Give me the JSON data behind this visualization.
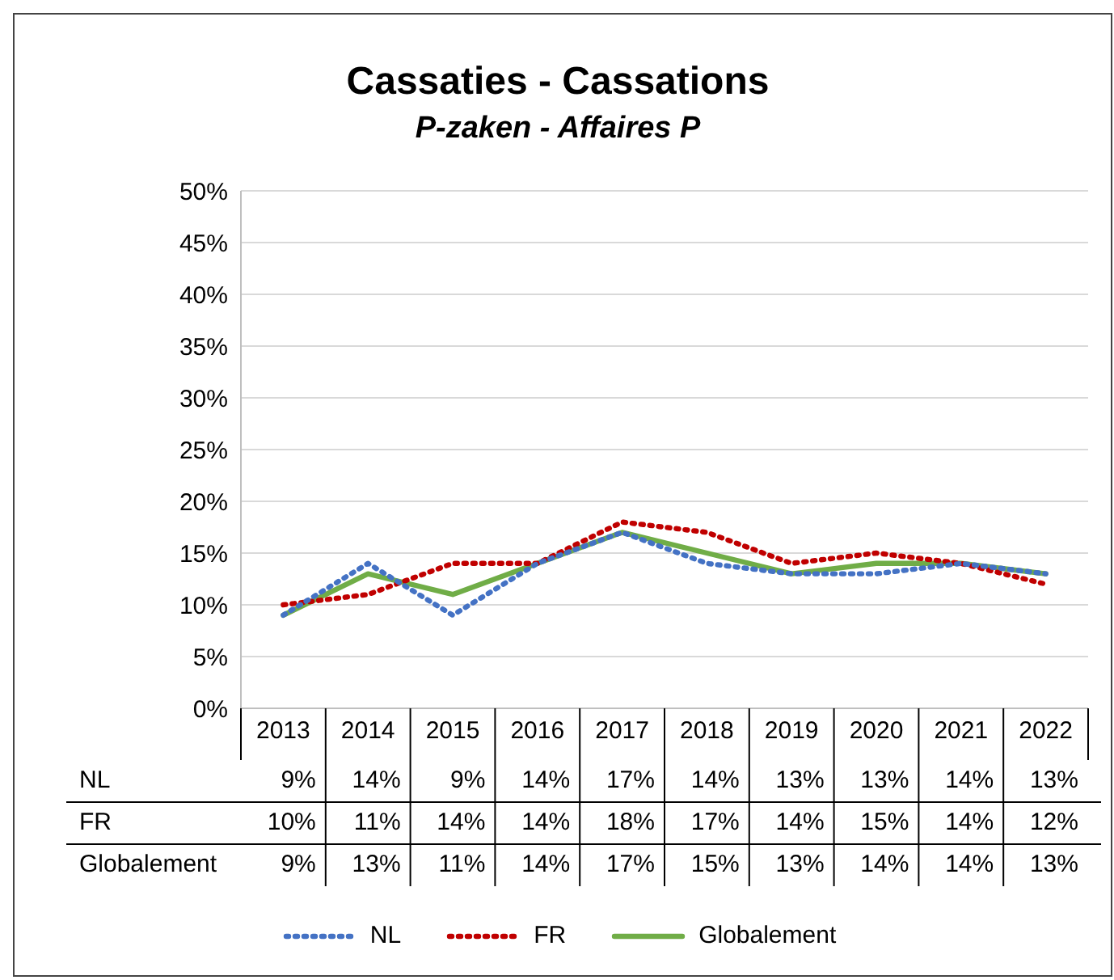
{
  "chart_data": {
    "type": "line",
    "title": "Cassaties - Cassations",
    "subtitle": "P-zaken - Affaires P",
    "categories": [
      "2013",
      "2014",
      "2015",
      "2016",
      "2017",
      "2018",
      "2019",
      "2020",
      "2021",
      "2022"
    ],
    "series": [
      {
        "name": "NL",
        "color": "#4472c4",
        "line_style": "dotted",
        "values": [
          9,
          14,
          9,
          14,
          17,
          14,
          13,
          13,
          14,
          13
        ],
        "value_labels": [
          "9%",
          "14%",
          "9%",
          "14%",
          "17%",
          "14%",
          "13%",
          "13%",
          "14%",
          "13%"
        ]
      },
      {
        "name": "FR",
        "color": "#c00000",
        "line_style": "dotted",
        "values": [
          10,
          11,
          14,
          14,
          18,
          17,
          14,
          15,
          14,
          12
        ],
        "value_labels": [
          "10%",
          "11%",
          "14%",
          "14%",
          "18%",
          "17%",
          "14%",
          "15%",
          "14%",
          "12%"
        ]
      },
      {
        "name": "Globalement",
        "color": "#70ad47",
        "line_style": "solid",
        "values": [
          9,
          13,
          11,
          14,
          17,
          15,
          13,
          14,
          14,
          13
        ],
        "value_labels": [
          "9%",
          "13%",
          "11%",
          "14%",
          "17%",
          "15%",
          "13%",
          "14%",
          "14%",
          "13%"
        ]
      }
    ],
    "ylim": [
      0,
      50
    ],
    "yticks": [
      {
        "value": 0,
        "label": "0%"
      },
      {
        "value": 5,
        "label": "5%"
      },
      {
        "value": 10,
        "label": "10%"
      },
      {
        "value": 15,
        "label": "15%"
      },
      {
        "value": 20,
        "label": "20%"
      },
      {
        "value": 25,
        "label": "25%"
      },
      {
        "value": 30,
        "label": "30%"
      },
      {
        "value": 35,
        "label": "35%"
      },
      {
        "value": 40,
        "label": "40%"
      },
      {
        "value": 45,
        "label": "45%"
      },
      {
        "value": 50,
        "label": "50%"
      }
    ],
    "grid": "y",
    "legend": "bottom",
    "marker": "none"
  }
}
